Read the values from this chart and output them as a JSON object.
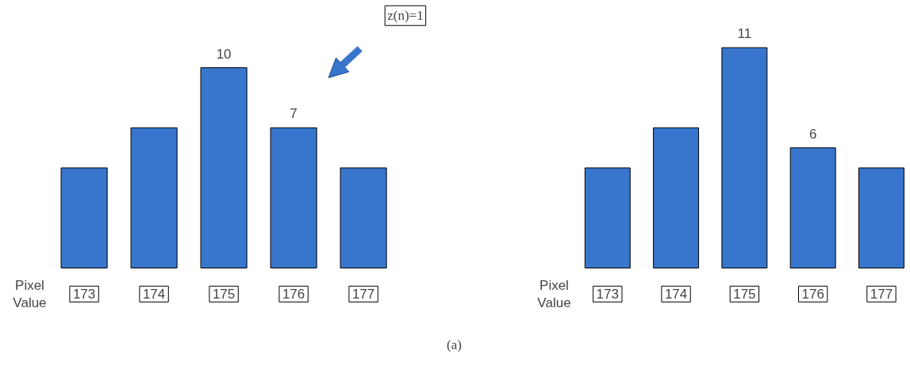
{
  "chart_data": [
    {
      "type": "bar",
      "categories": [
        "173",
        "174",
        "175",
        "176",
        "177"
      ],
      "values": [
        5,
        7,
        10,
        7,
        5
      ],
      "color": "#3776cc",
      "value_labels": [
        null,
        null,
        "10",
        "7",
        null
      ],
      "xlabel": "Pixel\nValue",
      "annotations": [
        "z(n)=1",
        "(a)"
      ]
    },
    {
      "type": "bar",
      "categories": [
        "173",
        "174",
        "175",
        "176",
        "177"
      ],
      "values": [
        5,
        7,
        11,
        6,
        5
      ],
      "color": "#3776cc",
      "value_labels": [
        null,
        null,
        "11",
        "6",
        null
      ],
      "xlabel": "Pixel\nValue"
    }
  ]
}
